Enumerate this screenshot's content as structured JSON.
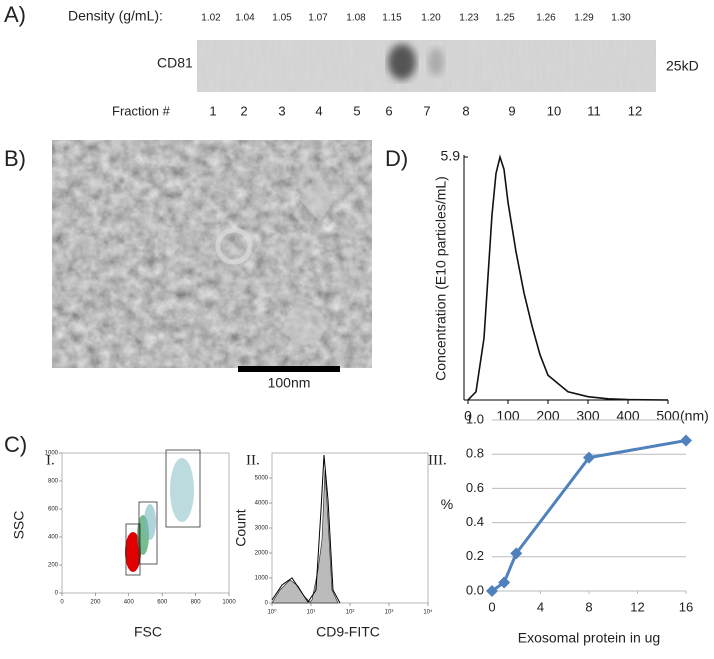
{
  "panel_a": {
    "label": "A)",
    "density_label": "Density (g/mL):",
    "densities": [
      "1.02",
      "1.04",
      "1.05",
      "1.07",
      "1.08",
      "1.15",
      "1.20",
      "1.23",
      "1.25",
      "1.26",
      "1.29",
      "1.30"
    ],
    "protein": "CD81",
    "size": "25kD",
    "fraction_label": "Fraction #",
    "fractions": [
      1,
      2,
      3,
      4,
      5,
      6,
      7,
      8,
      9,
      10,
      11,
      12
    ]
  },
  "panel_b": {
    "label": "B)",
    "scale_bar": "100nm"
  },
  "panel_c": {
    "label": "C)"
  },
  "panel_c1": {
    "label": "I.",
    "x_label": "FSC",
    "y_label": "SSC",
    "xlim": [
      0,
      1000
    ],
    "ylim": [
      0,
      1000
    ],
    "xticks": [
      0,
      200,
      400,
      600,
      800,
      1000
    ],
    "yticks": [
      0,
      200,
      400,
      600,
      800,
      1000
    ]
  },
  "panel_c2": {
    "label": "II.",
    "x_label": "CD9-FITC",
    "y_label": "Count",
    "xlim": [
      1,
      10000
    ],
    "ylim": [
      0,
      6000
    ],
    "log_x": true,
    "xticks": [
      {
        "value": 1,
        "label": "10⁰"
      },
      {
        "value": 10,
        "label": "10¹"
      },
      {
        "value": 100,
        "label": "10²"
      },
      {
        "value": 1000,
        "label": "10³"
      },
      {
        "value": 10000,
        "label": "10⁴"
      }
    ],
    "yticks": [
      0,
      1000,
      2000,
      3000,
      4000,
      5000
    ]
  },
  "chart_data": [
    {
      "type": "line",
      "label": "D)",
      "y_label": "Concentration (E10 particles/mL)",
      "x_unit": "(nm)",
      "x": [
        0,
        20,
        40,
        50,
        60,
        70,
        80,
        90,
        100,
        120,
        140,
        160,
        180,
        200,
        250,
        300,
        350,
        400,
        500
      ],
      "series": [
        {
          "color": "#111111",
          "values": [
            0,
            0.2,
            1.5,
            3,
            4.5,
            5.5,
            5.9,
            5.6,
            4.8,
            3.6,
            2.6,
            1.8,
            1.1,
            0.6,
            0.2,
            0.08,
            0.03,
            0.01,
            0
          ]
        }
      ],
      "xlim": [
        0,
        500
      ],
      "ylim": [
        0,
        5.9
      ],
      "xticks": [
        0,
        100,
        200,
        300,
        400,
        500
      ],
      "yticks": [
        5.9
      ]
    },
    {
      "type": "line",
      "label": "III.",
      "x_label": "Exosomal protein in ug",
      "y_label": "%",
      "x": [
        0,
        1,
        2,
        8,
        16
      ],
      "series": [
        {
          "color": "#4f81bd",
          "values": [
            0,
            0.05,
            0.22,
            0.78,
            0.88
          ]
        }
      ],
      "xlim": [
        0,
        16
      ],
      "ylim": [
        0,
        1
      ],
      "xticks": [
        0,
        4,
        8,
        12,
        16
      ],
      "yticks": [
        {
          "value": 0,
          "label": "0.0"
        },
        0.2,
        0.4,
        0.6,
        0.8,
        {
          "value": 1,
          "label": "1.0"
        }
      ],
      "grid": true
    }
  ]
}
